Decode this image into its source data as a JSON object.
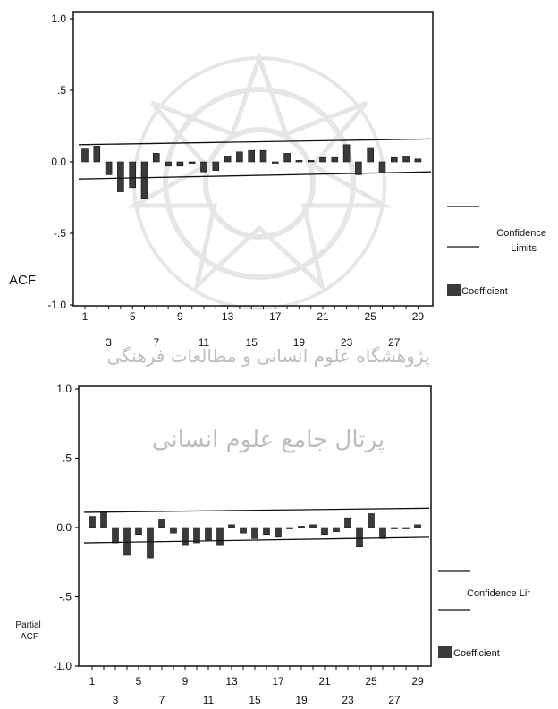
{
  "watermark": {
    "line1": "پژوهشگاه علوم انسانی و مطالعات فرهنگی",
    "line2": "پرتال جامع علوم انسانی"
  },
  "colors": {
    "bar_fill": "#3a3a3a",
    "ink": "#111111",
    "watermark": "#c8c8c8"
  },
  "chart_data": [
    {
      "type": "bar",
      "ylabel": "ACF",
      "ylim": [
        -1.0,
        1.0
      ],
      "y_ticks": [
        "1.0",
        ".5",
        "0.0",
        "-.5",
        "-1.0"
      ],
      "y_tick_values": [
        1.0,
        0.5,
        0.0,
        -0.5,
        -1.0
      ],
      "x": [
        1,
        2,
        3,
        4,
        5,
        6,
        7,
        8,
        9,
        10,
        11,
        12,
        13,
        14,
        15,
        16,
        17,
        18,
        19,
        20,
        21,
        22,
        23,
        24,
        25,
        26,
        27,
        28,
        29
      ],
      "x_ticks_odd_upper": [
        1,
        5,
        9,
        13,
        17,
        21,
        25,
        29
      ],
      "x_ticks_odd_lower": [
        3,
        7,
        11,
        15,
        19,
        23,
        27
      ],
      "values": [
        0.09,
        0.11,
        -0.09,
        -0.21,
        -0.18,
        -0.26,
        0.06,
        -0.03,
        -0.03,
        -0.01,
        -0.07,
        -0.06,
        0.04,
        0.07,
        0.08,
        0.08,
        0.0,
        0.06,
        0.01,
        0.01,
        0.03,
        0.03,
        0.12,
        -0.09,
        0.1,
        -0.07,
        0.03,
        0.04,
        0.02
      ],
      "confidence_limits": {
        "upper": [
          0.12,
          0.16
        ],
        "lower": [
          -0.12,
          -0.07
        ]
      },
      "legend": {
        "confidence": "Confidence Limits",
        "coefficient": "Coefficient"
      },
      "grid": false
    },
    {
      "type": "bar",
      "ylabel": "Partial ACF",
      "ylim": [
        -1.0,
        1.0
      ],
      "y_ticks": [
        "1.0",
        ".5",
        "0.0",
        "-.5",
        "-1.0"
      ],
      "y_tick_values": [
        1.0,
        0.5,
        0.0,
        -0.5,
        -1.0
      ],
      "x": [
        1,
        2,
        3,
        4,
        5,
        6,
        7,
        8,
        9,
        10,
        11,
        12,
        13,
        14,
        15,
        16,
        17,
        18,
        19,
        20,
        21,
        22,
        23,
        24,
        25,
        26,
        27,
        28,
        29
      ],
      "x_ticks_odd_upper": [
        1,
        5,
        9,
        13,
        17,
        21,
        25,
        29
      ],
      "x_ticks_odd_lower": [
        3,
        7,
        11,
        15,
        19,
        23,
        27
      ],
      "values": [
        0.08,
        0.11,
        -0.11,
        -0.2,
        -0.05,
        -0.22,
        0.06,
        -0.04,
        -0.13,
        -0.11,
        -0.09,
        -0.13,
        0.02,
        -0.04,
        -0.08,
        -0.05,
        -0.07,
        0.0,
        0.01,
        0.02,
        -0.05,
        -0.03,
        0.07,
        -0.14,
        0.1,
        -0.08,
        0.0,
        0.0,
        0.02
      ],
      "confidence_limits": {
        "upper": [
          0.11,
          0.14
        ],
        "lower": [
          -0.11,
          -0.07
        ]
      },
      "legend": {
        "confidence": "Confidence Lir",
        "coefficient": "Coefficient"
      },
      "grid": false
    }
  ]
}
